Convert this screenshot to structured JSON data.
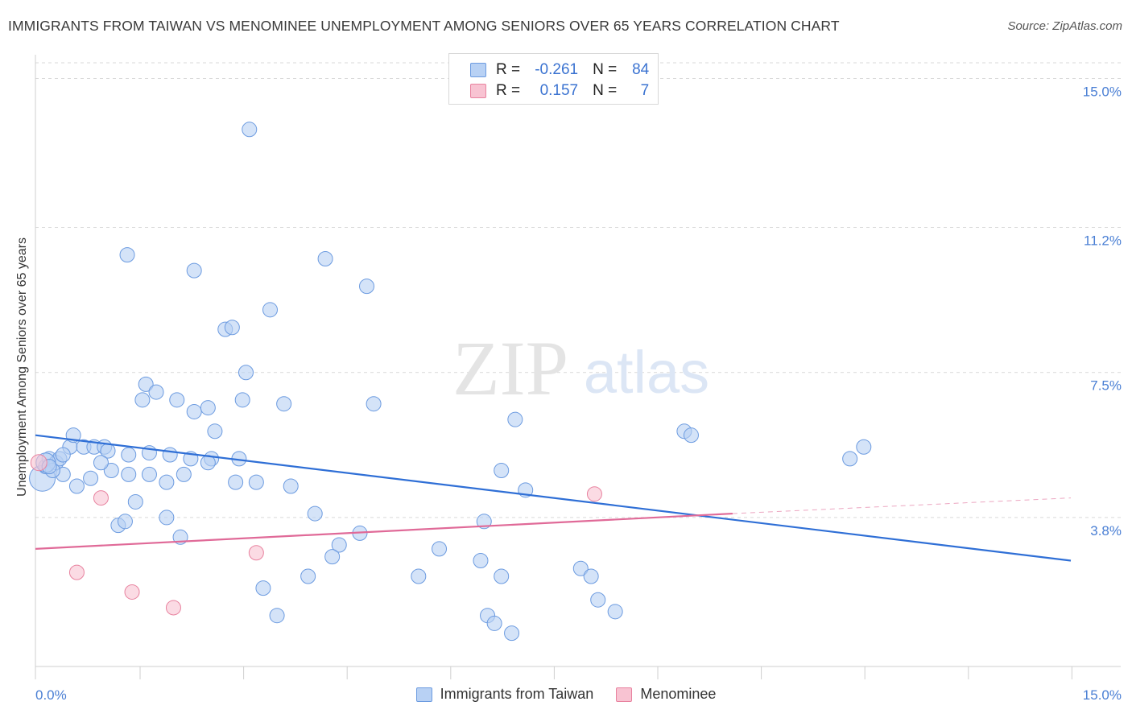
{
  "title": "IMMIGRANTS FROM TAIWAN VS MENOMINEE UNEMPLOYMENT AMONG SENIORS OVER 65 YEARS CORRELATION CHART",
  "source": "Source: ZipAtlas.com",
  "watermark": {
    "zip": "ZIP",
    "atlas": "atlas"
  },
  "legend": {
    "r_label": "R =",
    "n_label": "N =",
    "rows": [
      {
        "r": "-0.261",
        "n": "84"
      },
      {
        "r": "0.157",
        "n": "7"
      }
    ]
  },
  "bottom_legend": [
    "Immigrants from Taiwan",
    "Menominee"
  ],
  "colors": {
    "blue_fill": "#b8d1f4",
    "blue_stroke": "#6c9be0",
    "blue_line": "#2f6fd6",
    "pink_fill": "#f8c3d2",
    "pink_stroke": "#e8829f",
    "pink_line": "#e06a98",
    "tick": "#4a7fd4",
    "grid": "#d9d9d9"
  },
  "chart_data": {
    "type": "scatter",
    "title": "IMMIGRANTS FROM TAIWAN VS MENOMINEE UNEMPLOYMENT AMONG SENIORS OVER 65 YEARS CORRELATION CHART",
    "xlabel": "",
    "ylabel": "Unemployment Among Seniors over 65 years",
    "xlim": [
      0,
      15
    ],
    "ylim": [
      0,
      15.4
    ],
    "x_tick_labels": [
      "0.0%",
      "15.0%"
    ],
    "y_ticks": [
      3.8,
      7.5,
      11.2,
      15.0
    ],
    "y_tick_labels": [
      "3.8%",
      "7.5%",
      "11.2%",
      "15.0%"
    ],
    "series": [
      {
        "name": "Immigrants from Taiwan",
        "color": "blue",
        "trend": {
          "x": [
            0,
            15
          ],
          "y": [
            5.9,
            2.7
          ]
        },
        "points": [
          [
            0.1,
            4.8,
            16
          ],
          [
            0.15,
            5.1,
            9
          ],
          [
            0.2,
            5.3,
            9
          ],
          [
            0.3,
            5.2,
            9
          ],
          [
            0.4,
            4.9,
            9
          ],
          [
            0.5,
            5.6,
            9
          ],
          [
            0.55,
            5.9,
            9
          ],
          [
            0.7,
            5.6,
            9
          ],
          [
            0.85,
            5.6,
            9
          ],
          [
            1.0,
            5.6,
            9
          ],
          [
            1.05,
            5.5,
            9
          ],
          [
            1.1,
            5.0,
            9
          ],
          [
            0.6,
            4.6,
            9
          ],
          [
            0.8,
            4.8,
            9
          ],
          [
            0.35,
            5.3,
            9
          ],
          [
            0.25,
            5.0,
            9
          ],
          [
            0.4,
            5.4,
            9
          ],
          [
            0.95,
            5.2,
            9
          ],
          [
            1.35,
            5.4,
            9
          ],
          [
            1.65,
            5.45,
            9
          ],
          [
            1.95,
            5.4,
            9
          ],
          [
            2.25,
            5.3,
            9
          ],
          [
            2.55,
            5.3,
            9
          ],
          [
            2.95,
            5.3,
            9
          ],
          [
            1.35,
            4.9,
            9
          ],
          [
            1.65,
            4.9,
            9
          ],
          [
            2.15,
            4.9,
            9
          ],
          [
            2.5,
            5.2,
            9
          ],
          [
            1.9,
            4.7,
            9
          ],
          [
            2.9,
            4.7,
            9
          ],
          [
            3.2,
            4.7,
            9
          ],
          [
            3.7,
            4.6,
            9
          ],
          [
            1.45,
            4.2,
            9
          ],
          [
            1.2,
            3.6,
            9
          ],
          [
            1.3,
            3.7,
            9
          ],
          [
            1.9,
            3.8,
            9
          ],
          [
            2.1,
            3.3,
            9
          ],
          [
            1.55,
            6.8,
            9
          ],
          [
            1.6,
            7.2,
            9
          ],
          [
            1.75,
            7.0,
            9
          ],
          [
            2.05,
            6.8,
            9
          ],
          [
            2.3,
            6.5,
            9
          ],
          [
            2.5,
            6.6,
            9
          ],
          [
            2.6,
            6.0,
            9
          ],
          [
            3.0,
            6.8,
            9
          ],
          [
            3.05,
            7.5,
            9
          ],
          [
            3.6,
            6.7,
            9
          ],
          [
            2.75,
            8.6,
            9
          ],
          [
            2.85,
            8.65,
            9
          ],
          [
            3.4,
            9.1,
            9
          ],
          [
            1.33,
            10.5,
            9
          ],
          [
            2.3,
            10.1,
            9
          ],
          [
            4.2,
            10.4,
            9
          ],
          [
            4.8,
            9.7,
            9
          ],
          [
            3.1,
            13.7,
            9
          ],
          [
            4.9,
            6.7,
            9
          ],
          [
            6.95,
            6.3,
            9
          ],
          [
            9.4,
            6.0,
            9
          ],
          [
            9.5,
            5.9,
            9
          ],
          [
            12.0,
            5.6,
            9
          ],
          [
            11.8,
            5.3,
            9
          ],
          [
            6.75,
            5.0,
            9
          ],
          [
            7.1,
            4.5,
            9
          ],
          [
            4.05,
            3.9,
            9
          ],
          [
            4.7,
            3.4,
            9
          ],
          [
            4.4,
            3.1,
            9
          ],
          [
            4.3,
            2.8,
            9
          ],
          [
            5.85,
            3.0,
            9
          ],
          [
            6.5,
            3.7,
            9
          ],
          [
            6.45,
            2.7,
            9
          ],
          [
            5.55,
            2.3,
            9
          ],
          [
            6.75,
            2.3,
            9
          ],
          [
            7.9,
            2.5,
            9
          ],
          [
            8.05,
            2.3,
            9
          ],
          [
            8.15,
            1.7,
            9
          ],
          [
            8.4,
            1.4,
            9
          ],
          [
            3.95,
            2.3,
            9
          ],
          [
            3.3,
            2.0,
            9
          ],
          [
            3.5,
            1.3,
            9
          ],
          [
            6.55,
            1.3,
            9
          ],
          [
            6.65,
            1.1,
            9
          ],
          [
            6.9,
            0.85,
            9
          ],
          [
            0.15,
            5.2,
            12
          ],
          [
            0.2,
            5.1,
            9
          ]
        ]
      },
      {
        "name": "Menominee",
        "color": "pink",
        "trend": {
          "x": [
            0,
            10.1
          ],
          "y": [
            3.0,
            3.9
          ]
        },
        "trend_dashed": {
          "x": [
            10.1,
            15
          ],
          "y": [
            3.9,
            4.3
          ]
        },
        "points": [
          [
            0.05,
            5.2,
            10
          ],
          [
            0.95,
            4.3,
            9
          ],
          [
            0.6,
            2.4,
            9
          ],
          [
            1.4,
            1.9,
            9
          ],
          [
            2.0,
            1.5,
            9
          ],
          [
            3.2,
            2.9,
            9
          ],
          [
            8.1,
            4.4,
            9
          ]
        ]
      }
    ]
  }
}
